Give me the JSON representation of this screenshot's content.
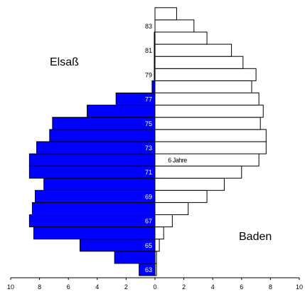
{
  "chart_data": {
    "type": "bar",
    "orientation": "horizontal",
    "layout": "population-pyramid",
    "title": "",
    "xlabel": "",
    "ylabel": "",
    "xlim": [
      -10,
      10
    ],
    "x_ticks": [
      -10,
      -8,
      -6,
      -4,
      -2,
      0,
      2,
      4,
      6,
      8,
      10
    ],
    "x_tick_labels": [
      "10",
      "8",
      "6",
      "4",
      "2",
      "0",
      "2",
      "4",
      "6",
      "8",
      "10"
    ],
    "categories": [
      63,
      64,
      65,
      66,
      67,
      68,
      69,
      70,
      71,
      72,
      73,
      74,
      75,
      76,
      77,
      78,
      79,
      80,
      81,
      82,
      83,
      84
    ],
    "category_labels": [
      "63",
      "",
      "65",
      "",
      "67",
      "",
      "69",
      "",
      "71",
      "",
      "73",
      "",
      "75",
      "",
      "77",
      "",
      "79",
      "",
      "81",
      "",
      "83",
      ""
    ],
    "series": [
      {
        "name": "Elsaß",
        "side": "left",
        "color": "#0000ff",
        "values": [
          1.1,
          2.8,
          5.2,
          8.4,
          8.7,
          8.5,
          8.3,
          7.7,
          8.7,
          8.7,
          8.2,
          7.3,
          7.1,
          4.7,
          2.7,
          0.2,
          0.05,
          0.05,
          0.05,
          0.05,
          0,
          0
        ]
      },
      {
        "name": "Baden",
        "side": "right",
        "color": "#ffffff",
        "values": [
          0.1,
          0.1,
          0.3,
          0.6,
          1.2,
          2.3,
          3.6,
          4.8,
          6.0,
          7.2,
          7.7,
          7.7,
          7.3,
          7.5,
          7.2,
          6.7,
          7.0,
          6.1,
          5.3,
          3.6,
          2.7,
          1.5
        ]
      }
    ],
    "annotations": [
      {
        "text": "6 Jahre",
        "age": 72,
        "x": 0.9
      }
    ],
    "grid": false
  }
}
